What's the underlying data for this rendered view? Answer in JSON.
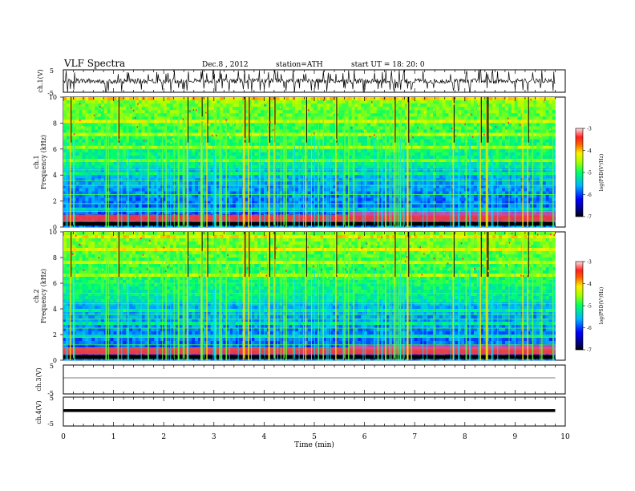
{
  "header": {
    "title": "VLF  Spectra",
    "date": "Dec.8  , 2012",
    "station": "station=ATH",
    "start": "start  UT =    18: 20: 0"
  },
  "chart_data": [
    {
      "type": "line",
      "panel": "ch1-waveform",
      "ylabel": "ch.1(V)",
      "yticks": [
        "5",
        "-5"
      ],
      "ylim": [
        -5,
        5
      ],
      "baseline": 0,
      "color": "#000000"
    },
    {
      "type": "heatmap",
      "panel": "ch1-spectrogram",
      "ylabel": "Frequency (kHz)",
      "channel_label": "ch.1",
      "yticks": [
        "0",
        "2",
        "4",
        "6",
        "8",
        "10"
      ],
      "ylim": [
        0,
        10
      ],
      "colorbar": {
        "label": "log(PSD(V²/Hz)",
        "ticks": [
          "-3",
          "-4",
          "-5",
          "-6",
          "-7"
        ],
        "range": [
          -7,
          -3
        ]
      }
    },
    {
      "type": "heatmap",
      "panel": "ch2-spectrogram",
      "ylabel": "Frequency (kHz)",
      "channel_label": "ch.2",
      "yticks": [
        "0",
        "2",
        "4",
        "6",
        "8",
        "10"
      ],
      "ylim": [
        0,
        10
      ],
      "colorbar": {
        "label": "log(PSD(V²/Hz)",
        "ticks": [
          "-3",
          "-4",
          "-5",
          "-6",
          "-7"
        ],
        "range": [
          -7,
          -3
        ]
      }
    },
    {
      "type": "line",
      "panel": "ch3-waveform",
      "ylabel": "ch.3(V)",
      "yticks": [
        "5",
        "-5"
      ],
      "ylim": [
        -5,
        5
      ],
      "baseline": 0
    },
    {
      "type": "line",
      "panel": "ch4-waveform",
      "ylabel": "ch.4(V)",
      "yticks": [
        "5",
        "-5"
      ],
      "ylim": [
        -5,
        5
      ],
      "baseline": 0
    }
  ],
  "x_axis": {
    "label": "Time  (min)",
    "ticks": [
      "0",
      "1",
      "2",
      "3",
      "4",
      "5",
      "6",
      "7",
      "8",
      "9",
      "10"
    ],
    "xlim": [
      0,
      10
    ],
    "data_end": 9.8
  }
}
